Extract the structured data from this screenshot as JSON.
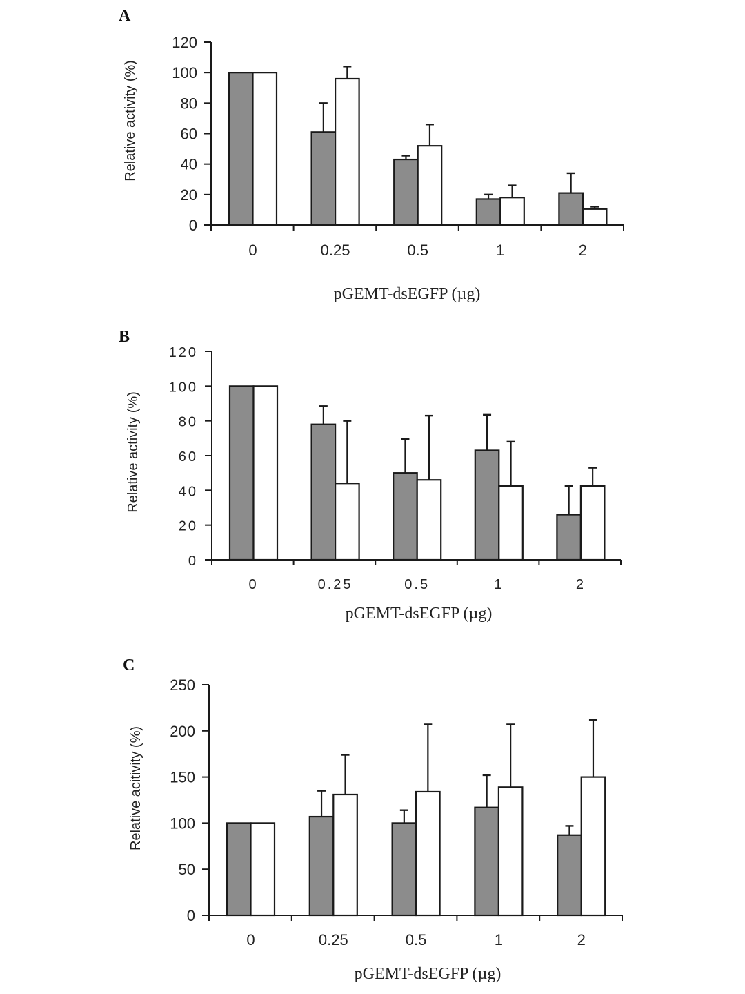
{
  "colors": {
    "series1": "#8c8c8c",
    "series2": "#ffffff",
    "stroke": "#1a1a1a"
  },
  "chart_data": [
    {
      "type": "bar",
      "panel": "A",
      "title": "",
      "xlabel": "pGEMT-dsEGFP (µg)",
      "ylabel": "Relative activity (%)",
      "categories": [
        "0",
        "0.25",
        "0.5",
        "1",
        "2"
      ],
      "yticks": [
        "0",
        "20",
        "40",
        "60",
        "80",
        "100",
        "120"
      ],
      "ylim": [
        0,
        120
      ],
      "grid": false,
      "series": [
        {
          "name": "gray",
          "values": [
            100,
            61,
            43,
            17,
            21
          ],
          "errors": [
            0,
            19,
            2.5,
            3,
            13
          ]
        },
        {
          "name": "white",
          "values": [
            100,
            96,
            52,
            18,
            10.5
          ],
          "errors": [
            0,
            8,
            14,
            8,
            1.5
          ]
        }
      ]
    },
    {
      "type": "bar",
      "panel": "B",
      "title": "",
      "xlabel": "pGEMT-dsEGFP (µg)",
      "ylabel": "Relative activity (%)",
      "categories": [
        "0",
        "0.25",
        "0.5",
        "1",
        "2"
      ],
      "yticks": [
        "0",
        "20",
        "40",
        "60",
        "80",
        "100",
        "120"
      ],
      "ylim": [
        0,
        120
      ],
      "grid": false,
      "series": [
        {
          "name": "gray",
          "values": [
            100,
            78,
            50,
            63,
            26
          ],
          "errors": [
            0,
            10.5,
            19.5,
            20.5,
            16.5
          ]
        },
        {
          "name": "white",
          "values": [
            100,
            44,
            46,
            42.5,
            42.5
          ],
          "errors": [
            0,
            36,
            37,
            25.5,
            10.5
          ]
        }
      ]
    },
    {
      "type": "bar",
      "panel": "C",
      "title": "",
      "xlabel": "pGEMT-dsEGFP (µg)",
      "ylabel": "Relative acitivity (%)",
      "categories": [
        "0",
        "0.25",
        "0.5",
        "1",
        "2"
      ],
      "yticks": [
        "0",
        "50",
        "100",
        "150",
        "200",
        "250"
      ],
      "ylim": [
        0,
        250
      ],
      "grid": false,
      "series": [
        {
          "name": "gray",
          "values": [
            100,
            107,
            100,
            117,
            87
          ],
          "errors": [
            0,
            28,
            14,
            35,
            10
          ]
        },
        {
          "name": "white",
          "values": [
            100,
            131,
            134,
            139,
            150
          ],
          "errors": [
            0,
            43,
            73,
            68,
            62
          ]
        }
      ]
    }
  ]
}
